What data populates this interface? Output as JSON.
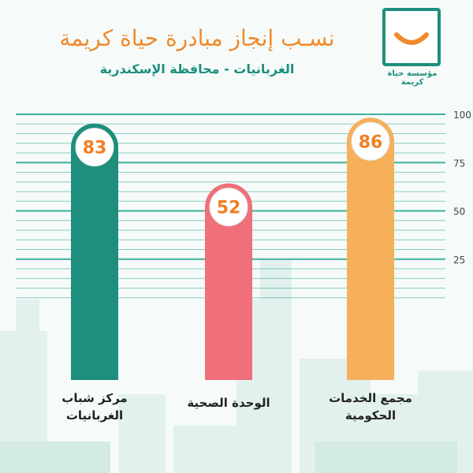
{
  "header": {
    "title": "نسـب إنجاز مبادرة حياة كريمة",
    "subtitle": "الغربانيات -  محافظة الإسكندرية"
  },
  "logo": {
    "text": "مؤسسة حياة كريمة",
    "icon": "smile-box-logo"
  },
  "colors": {
    "teal": "#1d8f7c",
    "pink": "#ef6f7a",
    "orange": "#f6b05a",
    "value_text": "#f07f22",
    "gridline": "#2aa892"
  },
  "chart_data": {
    "type": "bar",
    "categories": [
      "مركز شباب الغربانيات",
      "الوحدة الصحية",
      "مجمع الخدمات الحكومية"
    ],
    "category_lines": [
      [
        "مركز شباب",
        "الغربانيات"
      ],
      [
        "الوحدة الصحية"
      ],
      [
        "مجمع الخدمات",
        "الحكومية"
      ]
    ],
    "values": [
      83,
      52,
      86
    ],
    "value_labels": [
      "83",
      "52",
      "86"
    ],
    "bar_colors": [
      "#1d8f7c",
      "#ef6f7a",
      "#f6b05a"
    ],
    "title": "نسـب إنجاز مبادرة حياة كريمة",
    "subtitle": "الغربانيات -  محافظة الإسكندرية",
    "xlabel": "",
    "ylabel": "",
    "ylim": [
      0,
      100
    ],
    "yticks": [
      25,
      50,
      75,
      100
    ],
    "ytick_labels": [
      "25",
      "50",
      "75",
      "100"
    ],
    "grid": true
  }
}
